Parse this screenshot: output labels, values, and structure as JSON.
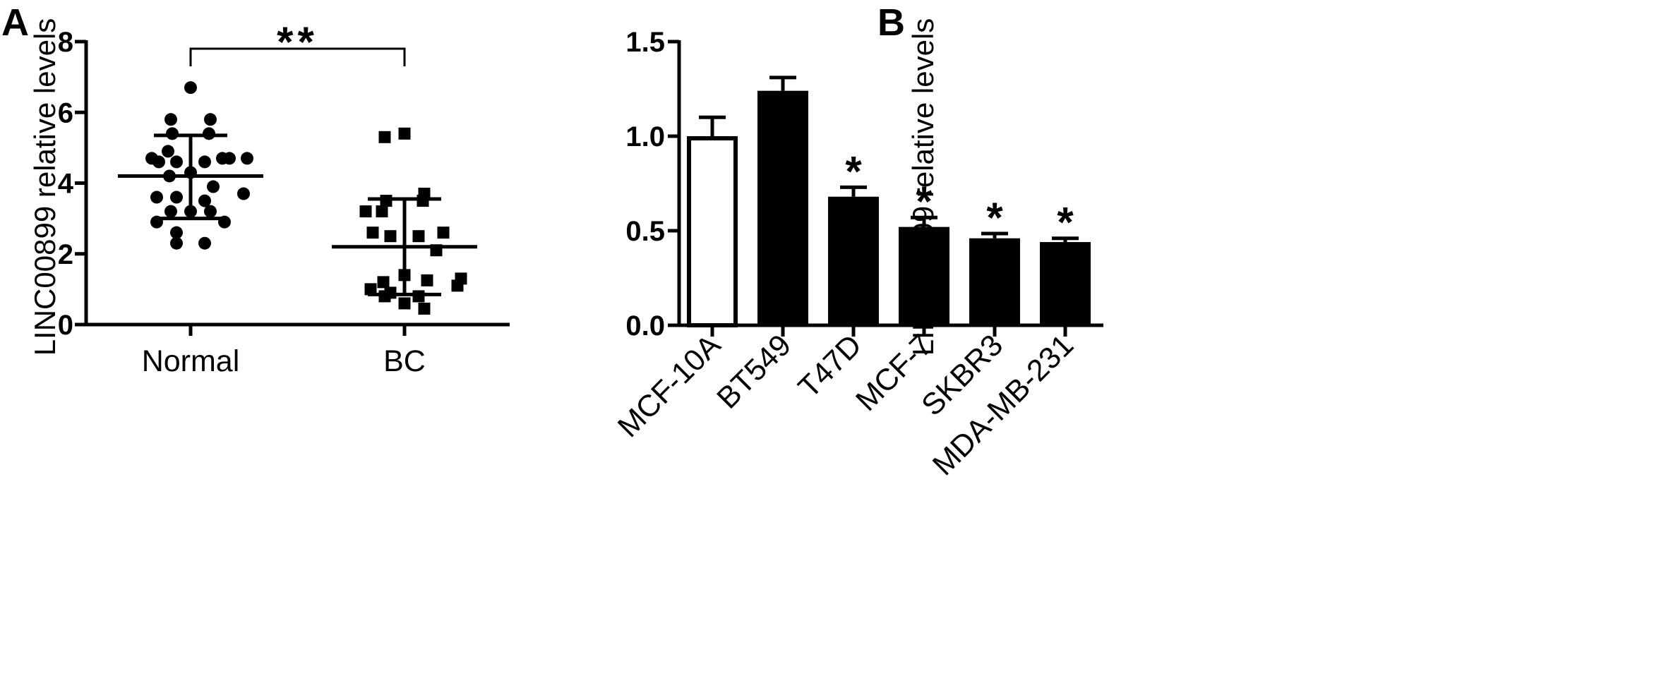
{
  "figure": {
    "panels": [
      "A",
      "B"
    ]
  },
  "chart_data": [
    {
      "type": "scatter",
      "panel": "A",
      "xlabel": "",
      "ylabel": "LINC00899 relative levels",
      "ylim": [
        0,
        8
      ],
      "yticks": [
        "0",
        "2",
        "4",
        "6",
        "8"
      ],
      "categories": [
        "Normal",
        "BC"
      ],
      "significance": "**",
      "series": [
        {
          "category": "Normal",
          "marker": "circle",
          "mean": 4.2,
          "sd_upper": 5.35,
          "sd_lower": 3.0,
          "values": [
            6.7,
            5.8,
            5.8,
            5.4,
            5.4,
            4.9,
            4.7,
            4.7,
            4.6,
            4.6,
            4.6,
            4.7,
            4.7,
            4.3,
            4.2,
            3.9,
            3.7,
            3.6,
            3.6,
            3.5,
            3.2,
            3.2,
            3.2,
            2.9,
            2.9,
            2.6,
            2.3,
            2.3
          ]
        },
        {
          "category": "BC",
          "marker": "square",
          "mean": 2.2,
          "sd_upper": 3.55,
          "sd_lower": 0.85,
          "values": [
            5.4,
            5.3,
            3.7,
            3.5,
            3.5,
            3.2,
            3.2,
            2.6,
            2.6,
            2.5,
            2.5,
            2.1,
            1.3,
            1.4,
            1.2,
            1.25,
            1.1,
            1.0,
            0.9,
            0.8,
            0.8,
            0.6,
            0.45
          ]
        }
      ]
    },
    {
      "type": "bar",
      "panel": "B",
      "xlabel": "",
      "ylabel": "LINC00899 relative levels",
      "ylim": [
        0,
        1.5
      ],
      "yticks": [
        "0.0",
        "0.5",
        "1.0",
        "1.5"
      ],
      "categories": [
        "MCF-10A",
        "BT549",
        "T47D",
        "MCF-7",
        "SKBR3",
        "MDA-MB-231"
      ],
      "values": [
        1.0,
        1.24,
        0.68,
        0.52,
        0.46,
        0.44
      ],
      "errors": [
        0.1,
        0.07,
        0.05,
        0.05,
        0.025,
        0.02
      ],
      "fills": [
        "#ffffff",
        "#000000",
        "#000000",
        "#000000",
        "#000000",
        "#000000"
      ],
      "significance": [
        "",
        "",
        "*",
        "*",
        "*",
        "*"
      ]
    }
  ]
}
